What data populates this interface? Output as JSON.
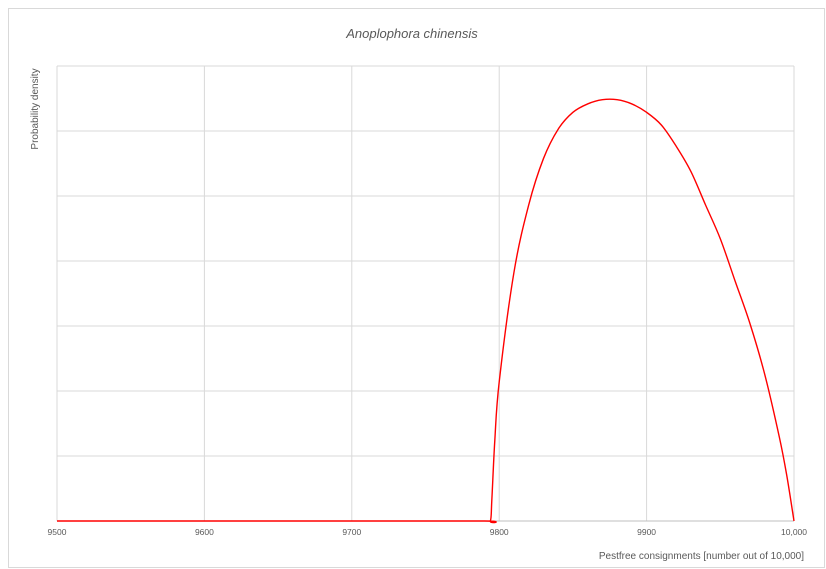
{
  "chart_data": {
    "type": "line",
    "title": "Anoplophora chinensis",
    "xlabel": "Pestfree consignments [number out of 10,000]",
    "ylabel": "Probability density",
    "xlim": [
      9500,
      10000
    ],
    "ylim": [
      0,
      1.08
    ],
    "x_ticks": [
      9500,
      9600,
      9700,
      9800,
      9900,
      10000
    ],
    "x_tick_labels": [
      "9500",
      "9600",
      "9700",
      "9800",
      "9900",
      "10,000"
    ],
    "y_tick_labels_shown": false,
    "grid": true,
    "legend": "none",
    "series": [
      {
        "color": "#ff0000",
        "x": [
          9500,
          9600,
          9700,
          9790,
          9794,
          9795,
          9797,
          9800,
          9810,
          9820,
          9830,
          9840,
          9850,
          9860,
          9870,
          9880,
          9890,
          9900,
          9910,
          9920,
          9930,
          9940,
          9950,
          9960,
          9970,
          9980,
          9990,
          9995,
          10000
        ],
        "y": [
          0,
          0,
          0,
          0,
          0,
          0.05,
          0.19,
          0.33,
          0.59,
          0.75,
          0.86,
          0.93,
          0.97,
          0.99,
          1.0,
          1.0,
          0.99,
          0.97,
          0.94,
          0.89,
          0.83,
          0.75,
          0.67,
          0.57,
          0.47,
          0.35,
          0.2,
          0.11,
          0.0
        ]
      }
    ]
  }
}
